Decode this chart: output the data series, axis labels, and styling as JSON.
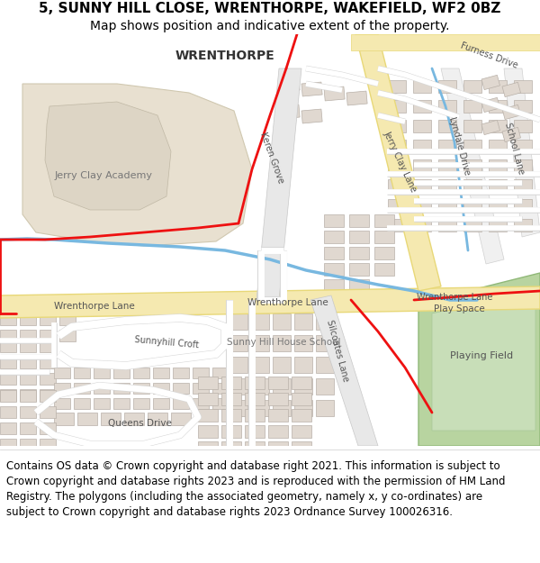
{
  "title_line1": "5, SUNNY HILL CLOSE, WRENTHORPE, WAKEFIELD, WF2 0BZ",
  "title_line2": "Map shows position and indicative extent of the property.",
  "footer_text": "Contains OS data © Crown copyright and database right 2021. This information is subject to Crown copyright and database rights 2023 and is reproduced with the permission of HM Land Registry. The polygons (including the associated geometry, namely x, y co-ordinates) are subject to Crown copyright and database rights 2023 Ordnance Survey 100026316.",
  "title_fontsize": 11,
  "subtitle_fontsize": 10,
  "footer_fontsize": 8.5,
  "map_bg": "#f8f8f8",
  "road_major_color": "#f5e9b0",
  "road_major_edge": "#e8d878",
  "road_minor_color": "#ffffff",
  "road_minor_edge": "#c8c8c8",
  "building_color": "#e0d8d0",
  "building_edge": "#b8b0a8",
  "green_color": "#b8d4a0",
  "green_edge": "#90b878",
  "water_color": "#88c0e0",
  "school_color": "#e8e0d0",
  "red_boundary": "#ee1111",
  "blue_line": "#78b8e0"
}
